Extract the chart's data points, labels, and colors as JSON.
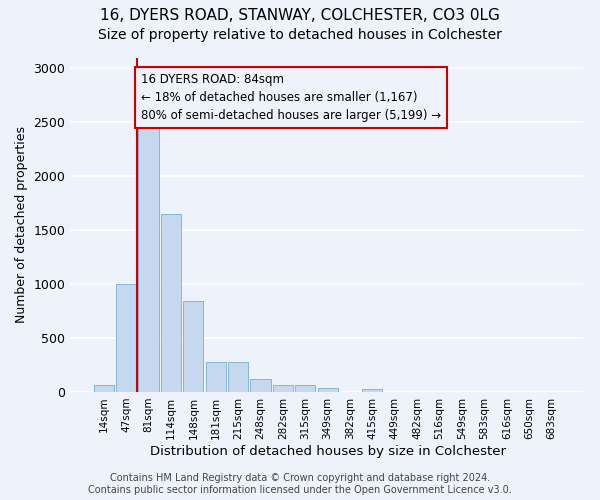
{
  "title1": "16, DYERS ROAD, STANWAY, COLCHESTER, CO3 0LG",
  "title2": "Size of property relative to detached houses in Colchester",
  "xlabel": "Distribution of detached houses by size in Colchester",
  "ylabel": "Number of detached properties",
  "categories": [
    "14sqm",
    "47sqm",
    "81sqm",
    "114sqm",
    "148sqm",
    "181sqm",
    "215sqm",
    "248sqm",
    "282sqm",
    "315sqm",
    "349sqm",
    "382sqm",
    "415sqm",
    "449sqm",
    "482sqm",
    "516sqm",
    "549sqm",
    "583sqm",
    "616sqm",
    "650sqm",
    "683sqm"
  ],
  "values": [
    60,
    1000,
    2490,
    1650,
    840,
    280,
    280,
    120,
    60,
    60,
    40,
    0,
    30,
    0,
    0,
    0,
    0,
    0,
    0,
    0,
    0
  ],
  "bar_color": "#c5d8ed",
  "bar_edge_color": "#7aafd4",
  "property_line_x": 1.5,
  "property_line_color": "#cc0000",
  "annotation_text": "16 DYERS ROAD: 84sqm\n← 18% of detached houses are smaller (1,167)\n80% of semi-detached houses are larger (5,199) →",
  "annotation_box_color": "#cc0000",
  "ylim": [
    0,
    3100
  ],
  "yticks": [
    0,
    500,
    1000,
    1500,
    2000,
    2500,
    3000
  ],
  "footnote": "Contains HM Land Registry data © Crown copyright and database right 2024.\nContains public sector information licensed under the Open Government Licence v3.0.",
  "bg_color": "#eef2fa",
  "grid_color": "#ffffff",
  "title1_fontsize": 11,
  "title2_fontsize": 10,
  "xlabel_fontsize": 9.5,
  "ylabel_fontsize": 9,
  "annotation_fontsize": 8.5,
  "footnote_fontsize": 7
}
